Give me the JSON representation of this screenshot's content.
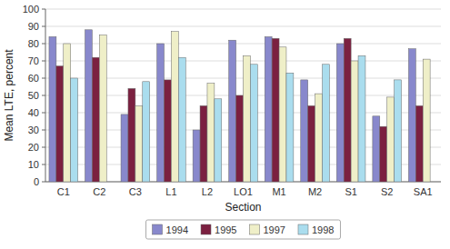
{
  "chart_data": {
    "type": "bar",
    "xlabel": "Section",
    "ylabel": "Mean LTE, percent",
    "categories": [
      "C1",
      "C2",
      "C3",
      "L1",
      "L2",
      "LO1",
      "M1",
      "M2",
      "S1",
      "S2",
      "SA1"
    ],
    "series": [
      {
        "name": "1994",
        "color": "#8888CC",
        "values": [
          84,
          88,
          39,
          80,
          30,
          82,
          84,
          59,
          80,
          38,
          77
        ]
      },
      {
        "name": "1995",
        "color": "#7B2040",
        "values": [
          67,
          72,
          54,
          59,
          44,
          50,
          83,
          44,
          83,
          32,
          44
        ]
      },
      {
        "name": "1997",
        "color": "#EFEFC8",
        "values": [
          80,
          85,
          44,
          87,
          57,
          73,
          78,
          51,
          70,
          49,
          71
        ]
      },
      {
        "name": "1998",
        "color": "#AADDEE",
        "values": [
          60,
          0,
          58,
          72,
          48,
          68,
          63,
          68,
          73,
          59,
          0
        ]
      }
    ],
    "ylim": [
      0,
      100
    ],
    "yticks": [
      0,
      10,
      20,
      30,
      40,
      50,
      60,
      70,
      80,
      90,
      100
    ],
    "grid": true,
    "legend": "bottom"
  }
}
